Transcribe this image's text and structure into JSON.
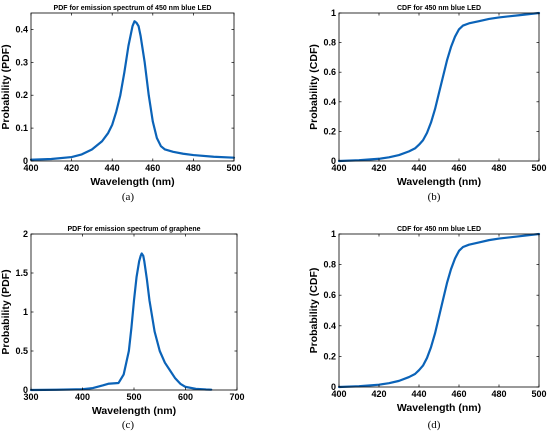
{
  "chart_data": [
    {
      "type": "line",
      "title": "PDF for emission spectrum of 450 nm blue LED",
      "xlabel": "Wavelength (nm)",
      "ylabel": "Probability (PDF)",
      "caption": "(a)",
      "xlim": [
        400,
        500
      ],
      "ylim": [
        0,
        0.45
      ],
      "xticks": [
        400,
        420,
        440,
        460,
        480,
        500
      ],
      "xtick_labels": [
        "400",
        "420",
        "440",
        "460",
        "480",
        "500"
      ],
      "yticks": [
        0,
        0.1,
        0.2,
        0.3,
        0.4
      ],
      "ytick_labels": [
        "0",
        "0.1",
        "0.2",
        "0.3",
        "0.4"
      ],
      "grid": false,
      "series": [
        {
          "color": "#0b63b8",
          "x": [
            400,
            410,
            420,
            425,
            430,
            435,
            438,
            440,
            442,
            444,
            446,
            448,
            450,
            451,
            452,
            453,
            454,
            456,
            458,
            460,
            462,
            464,
            466,
            470,
            475,
            480,
            490,
            500
          ],
          "y": [
            0.004,
            0.006,
            0.012,
            0.02,
            0.035,
            0.06,
            0.085,
            0.11,
            0.15,
            0.2,
            0.27,
            0.35,
            0.41,
            0.425,
            0.42,
            0.41,
            0.38,
            0.3,
            0.2,
            0.12,
            0.07,
            0.045,
            0.035,
            0.028,
            0.022,
            0.018,
            0.013,
            0.01
          ]
        }
      ]
    },
    {
      "type": "line",
      "title": "CDF for 450 nm blue LED",
      "xlabel": "Wavelength (nm)",
      "ylabel": "Probability (CDF)",
      "caption": "(b)",
      "xlim": [
        400,
        500
      ],
      "ylim": [
        0,
        1
      ],
      "xticks": [
        400,
        420,
        440,
        460,
        480,
        500
      ],
      "xtick_labels": [
        "400",
        "420",
        "440",
        "460",
        "480",
        "500"
      ],
      "yticks": [
        0,
        0.2,
        0.4,
        0.6,
        0.8,
        1
      ],
      "ytick_labels": [
        "0",
        "0.2",
        "0.4",
        "0.6",
        "0.8",
        "1"
      ],
      "grid": false,
      "series": [
        {
          "color": "#0b63b8",
          "x": [
            400,
            410,
            420,
            425,
            430,
            435,
            438,
            440,
            442,
            444,
            446,
            448,
            450,
            452,
            454,
            456,
            458,
            460,
            462,
            465,
            470,
            475,
            480,
            490,
            500
          ],
          "y": [
            0.0,
            0.005,
            0.015,
            0.025,
            0.04,
            0.065,
            0.085,
            0.11,
            0.14,
            0.19,
            0.26,
            0.35,
            0.46,
            0.57,
            0.68,
            0.77,
            0.84,
            0.89,
            0.915,
            0.93,
            0.945,
            0.96,
            0.97,
            0.985,
            1.0
          ]
        }
      ]
    },
    {
      "type": "line",
      "title": "PDF for emission spectrum of graphene",
      "xlabel": "Wavelength (nm)",
      "ylabel": "Probability (PDF)",
      "caption": "(c)",
      "xlim": [
        300,
        700
      ],
      "ylim": [
        0,
        2
      ],
      "xticks": [
        300,
        400,
        500,
        600,
        700
      ],
      "xtick_labels": [
        "300",
        "400",
        "500",
        "600",
        "700"
      ],
      "yticks": [
        0,
        0.5,
        1,
        1.5,
        2
      ],
      "ytick_labels": [
        "0",
        "0.5",
        "1",
        "1.5",
        "2"
      ],
      "grid": false,
      "series": [
        {
          "color": "#0b63b8",
          "x": [
            300,
            350,
            400,
            420,
            440,
            450,
            460,
            470,
            480,
            490,
            495,
            500,
            505,
            510,
            513,
            515,
            518,
            520,
            525,
            530,
            540,
            550,
            560,
            570,
            580,
            590,
            600,
            620,
            640,
            650
          ],
          "y": [
            0.0,
            0.003,
            0.01,
            0.025,
            0.06,
            0.08,
            0.085,
            0.09,
            0.2,
            0.5,
            0.8,
            1.15,
            1.45,
            1.65,
            1.72,
            1.75,
            1.72,
            1.65,
            1.42,
            1.15,
            0.75,
            0.5,
            0.35,
            0.25,
            0.15,
            0.08,
            0.04,
            0.015,
            0.006,
            0.004
          ]
        }
      ]
    },
    {
      "type": "line",
      "title": "CDF for 450 nm blue LED",
      "xlabel": "Wavelength (nm)",
      "ylabel": "Probability (CDF)",
      "caption": "(d)",
      "xlim": [
        400,
        500
      ],
      "ylim": [
        0,
        1
      ],
      "xticks": [
        400,
        420,
        440,
        460,
        480,
        500
      ],
      "xtick_labels": [
        "400",
        "420",
        "440",
        "460",
        "480",
        "500"
      ],
      "yticks": [
        0,
        0.2,
        0.4,
        0.6,
        0.8,
        1
      ],
      "ytick_labels": [
        "0",
        "0.2",
        "0.4",
        "0.6",
        "0.8",
        "1"
      ],
      "grid": false,
      "series": [
        {
          "color": "#0b63b8",
          "x": [
            400,
            410,
            420,
            425,
            430,
            435,
            438,
            440,
            442,
            444,
            446,
            448,
            450,
            452,
            454,
            456,
            458,
            460,
            462,
            465,
            470,
            475,
            480,
            490,
            500
          ],
          "y": [
            0.0,
            0.005,
            0.015,
            0.025,
            0.04,
            0.065,
            0.085,
            0.11,
            0.14,
            0.19,
            0.26,
            0.35,
            0.46,
            0.57,
            0.68,
            0.77,
            0.84,
            0.89,
            0.915,
            0.93,
            0.945,
            0.96,
            0.97,
            0.985,
            1.0
          ]
        }
      ]
    }
  ]
}
